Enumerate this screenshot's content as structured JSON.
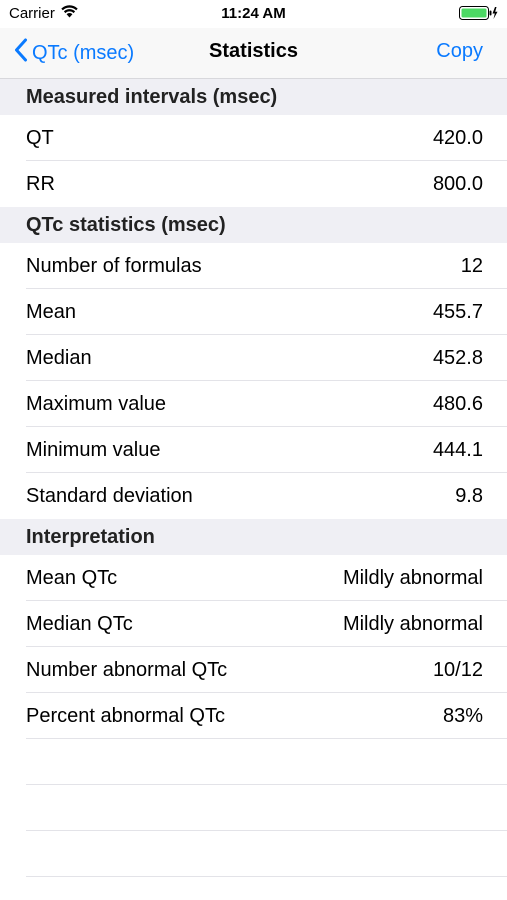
{
  "status_bar": {
    "carrier": "Carrier",
    "time": "11:24 AM",
    "wifi_icon": "wifi-icon",
    "battery_icon": "battery-charging-icon"
  },
  "nav": {
    "back_label": "QTc (msec)",
    "title": "Statistics",
    "action_label": "Copy",
    "accent_color": "#0a7aff"
  },
  "sections": [
    {
      "header": "Measured intervals (msec)",
      "rows": [
        {
          "label": "QT",
          "value": "420.0"
        },
        {
          "label": "RR",
          "value": "800.0"
        }
      ]
    },
    {
      "header": "QTc statistics (msec)",
      "rows": [
        {
          "label": "Number of formulas",
          "value": "12"
        },
        {
          "label": "Mean",
          "value": "455.7"
        },
        {
          "label": "Median",
          "value": "452.8"
        },
        {
          "label": "Maximum value",
          "value": "480.6"
        },
        {
          "label": "Minimum value",
          "value": "444.1"
        },
        {
          "label": "Standard deviation",
          "value": "9.8"
        }
      ]
    },
    {
      "header": "Interpretation",
      "rows": [
        {
          "label": "Mean QTc",
          "value": "Mildly abnormal"
        },
        {
          "label": "Median QTc",
          "value": "Mildly abnormal"
        },
        {
          "label": "Number abnormal QTc",
          "value": "10/12"
        },
        {
          "label": "Percent abnormal QTc",
          "value": "83%"
        }
      ]
    }
  ]
}
